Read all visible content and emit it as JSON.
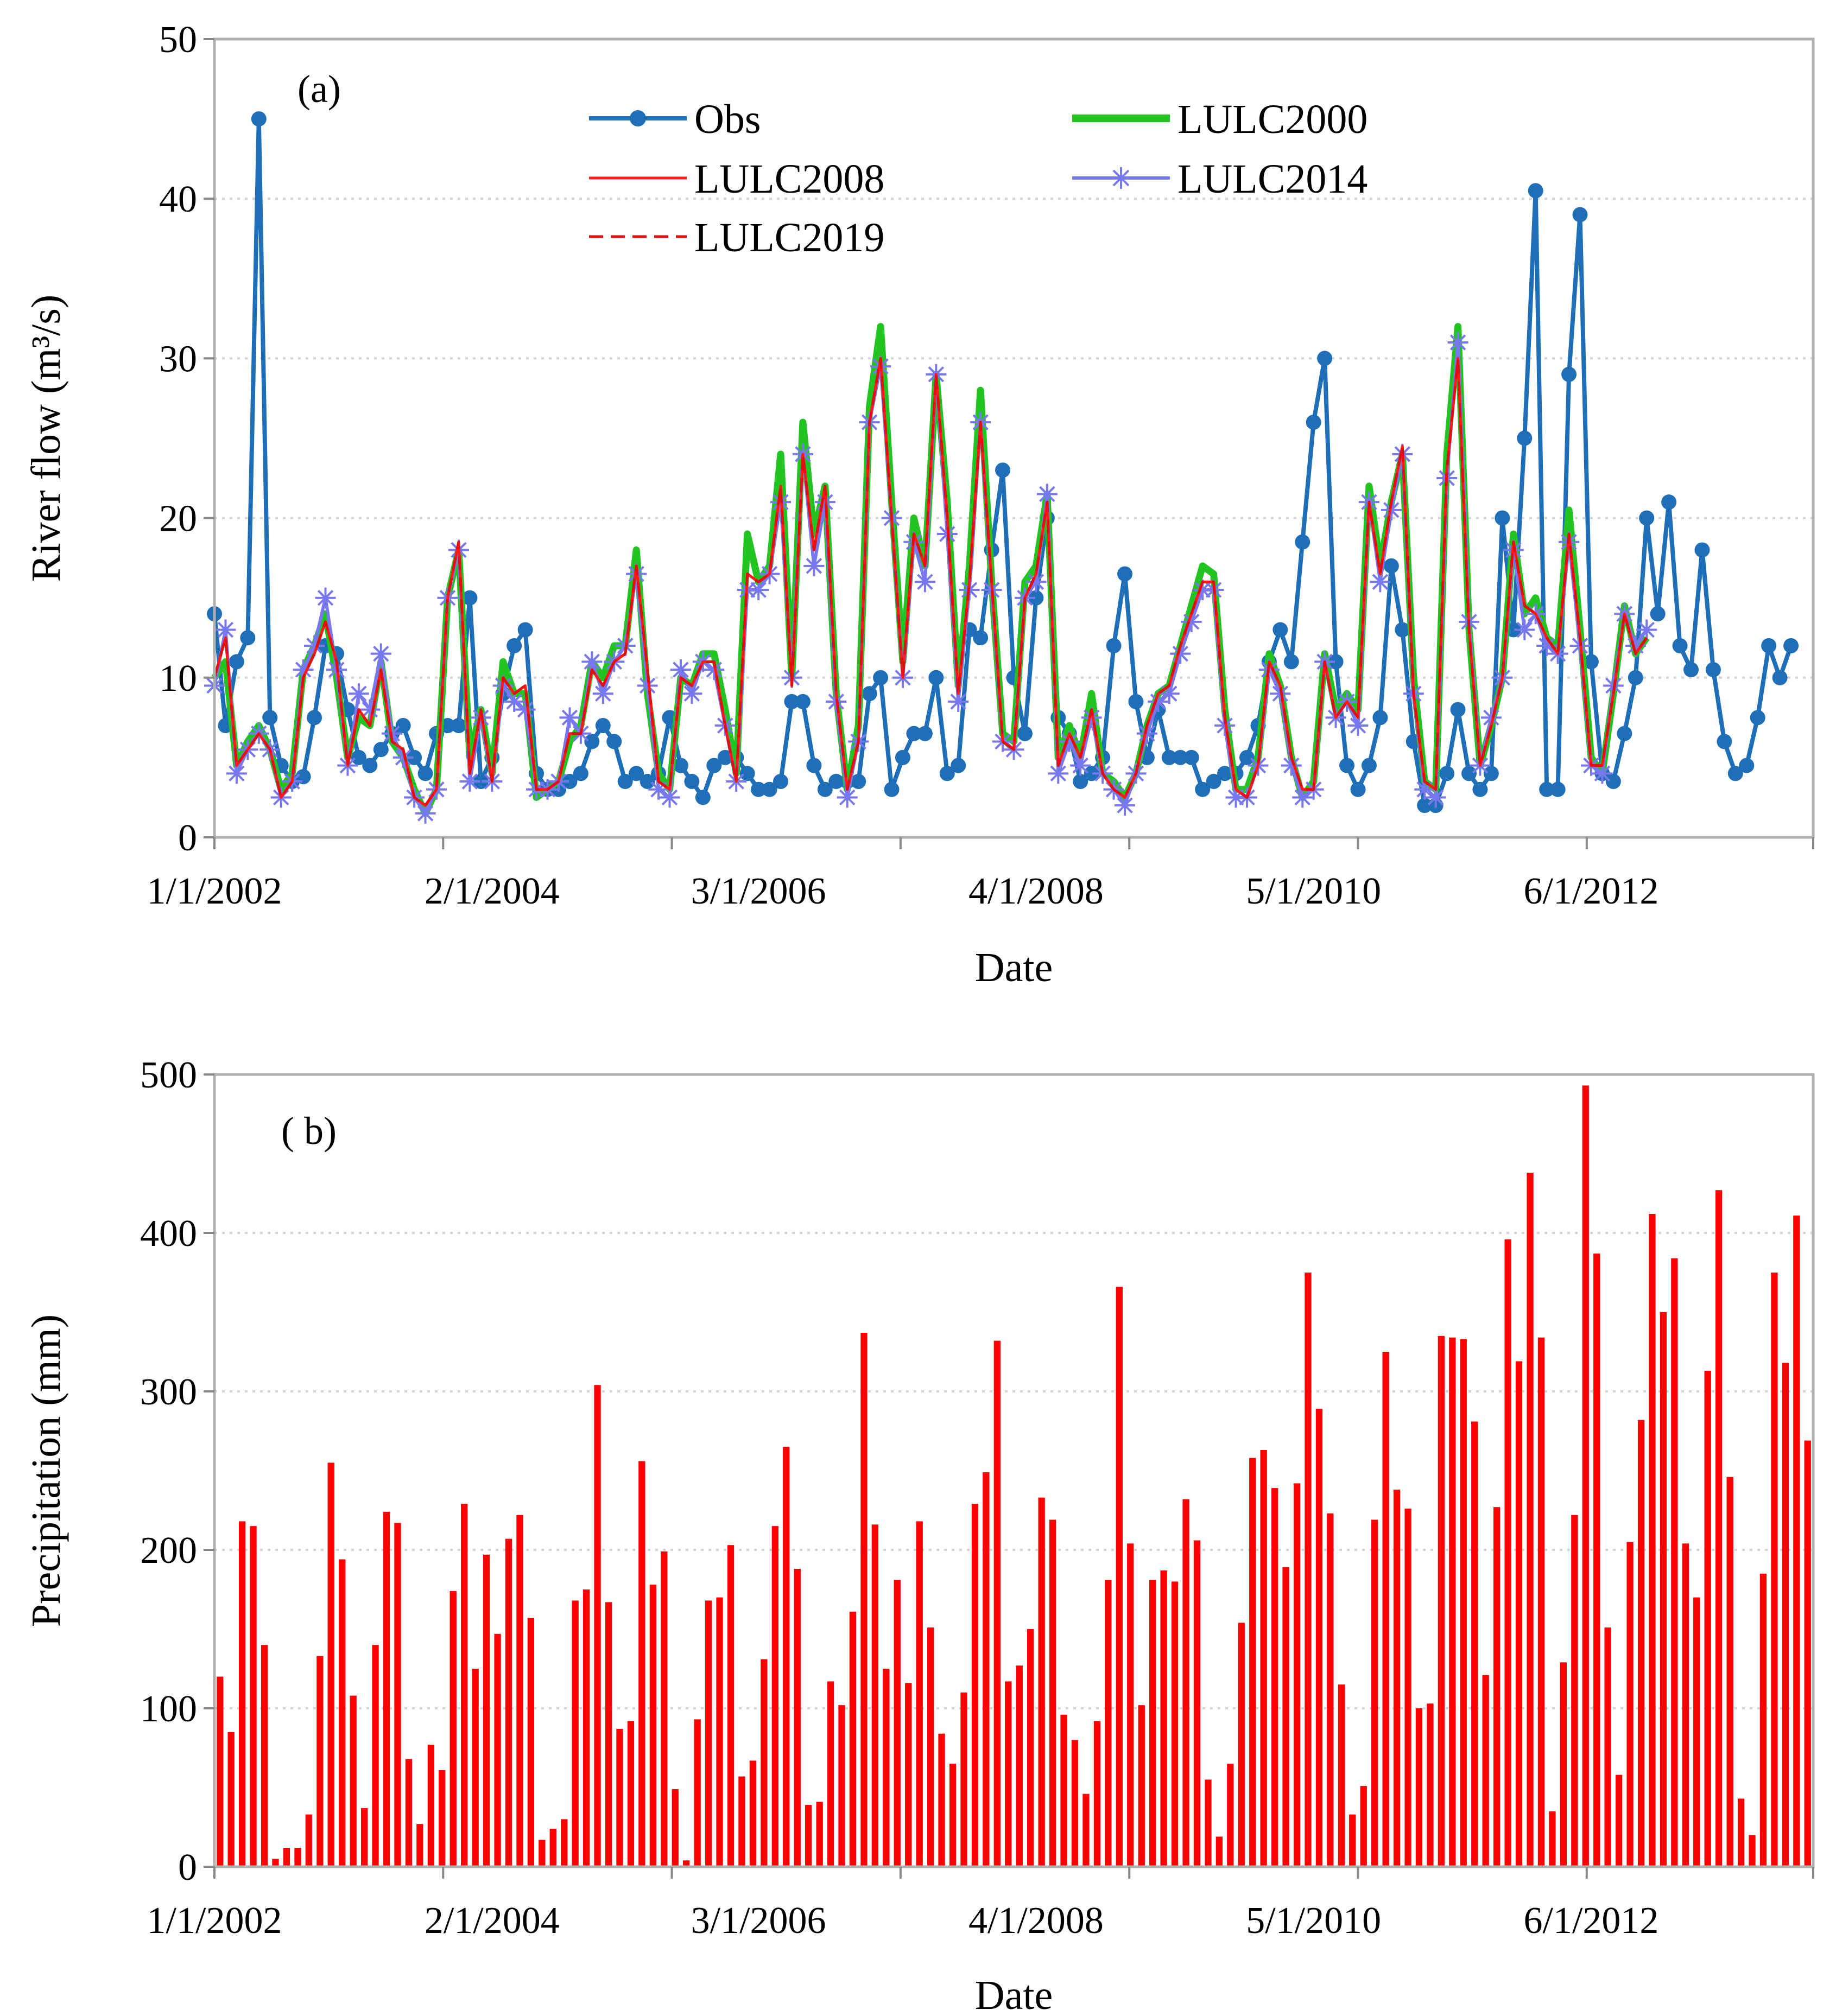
{
  "chart_data": [
    {
      "type": "line",
      "panel_label": "(a)",
      "xlabel": "Date",
      "ylabel": "River flow (m³/s)",
      "ylim": [
        0,
        50
      ],
      "yticks": [
        "0",
        "10",
        "20",
        "30",
        "40",
        "50"
      ],
      "xtick_labels": [
        "1/1/2002",
        "2/1/2004",
        "3/1/2006",
        "4/1/2008",
        "5/1/2010",
        "6/1/2012"
      ],
      "x_unit": "month index from Jan 2002 (0 = Jan 2002)",
      "x_range": [
        0,
        144
      ],
      "grid": "horizontal dotted",
      "legend_position": "top",
      "colors": {
        "obs": "#1f6eb8",
        "lulc2000": "#22c422",
        "lulc2008": "#ff1a1a",
        "lulc2014": "#7878ee",
        "lulc2019": "#e01010"
      },
      "series": [
        {
          "name": "Obs",
          "style": "line-dot",
          "values": [
            14,
            7,
            11,
            12.5,
            45,
            7.5,
            4.5,
            3.5,
            3.8,
            7.5,
            12,
            11.5,
            8,
            5,
            4.5,
            5.5,
            6.5,
            7,
            5,
            4,
            6.5,
            7,
            7,
            15,
            3.5,
            5,
            9,
            12,
            13,
            4,
            3,
            3,
            3.5,
            4,
            6,
            7,
            6,
            3.5,
            4,
            3.5,
            4,
            7.5,
            4.5,
            3.5,
            2.5,
            4.5,
            5,
            5,
            4,
            3,
            3,
            3.5,
            8.5,
            8.5,
            4.5,
            3,
            3.5,
            3.5,
            3.5,
            9,
            10,
            3,
            5,
            6.5,
            6.5,
            10,
            4,
            4.5,
            13,
            12.5,
            18,
            23,
            10,
            6.5,
            15,
            20,
            7.5,
            6.5,
            3.5,
            4,
            5,
            12,
            16.5,
            8.5,
            5,
            8,
            5,
            5,
            5,
            3,
            3.5,
            4,
            4,
            5,
            7,
            11,
            13,
            11,
            18.5,
            26,
            30,
            11,
            4.5,
            3,
            4.5,
            7.5,
            17,
            13,
            6,
            2,
            2,
            4,
            8,
            4,
            3,
            4,
            20,
            13,
            25,
            40.5,
            3,
            3,
            29,
            39,
            11,
            4,
            3.5,
            6.5,
            10,
            20,
            14,
            21,
            12,
            10.5,
            18,
            10.5,
            6,
            4,
            4.5,
            7.5,
            12,
            10,
            12
          ]
        },
        {
          "name": "LULC2000",
          "style": "thick-line",
          "values": [
            10,
            11,
            4.5,
            6,
            7,
            5.5,
            3,
            4,
            10.5,
            12,
            14,
            10,
            5,
            7.5,
            7,
            11,
            6,
            5,
            3,
            1.5,
            3,
            15,
            18,
            5,
            8,
            4,
            11,
            9,
            9,
            2.5,
            3,
            3.5,
            6,
            7,
            11,
            10,
            12,
            12,
            18,
            9,
            4,
            3,
            10,
            9.5,
            11.5,
            11.5,
            8,
            4,
            19,
            16,
            17,
            24,
            10,
            26,
            19,
            22,
            9,
            3,
            7,
            27,
            32,
            21,
            11,
            20,
            17,
            29,
            21,
            9.5,
            17,
            28,
            16,
            6.5,
            6,
            16,
            17,
            21.5,
            5,
            7,
            5,
            9,
            4,
            3.5,
            2.5,
            4,
            7,
            9,
            9.5,
            12,
            14.5,
            17,
            16.5,
            8,
            3,
            3,
            5,
            11.5,
            9.5,
            5,
            2.5,
            3.5,
            11.5,
            8,
            9,
            8,
            22,
            17,
            21,
            24,
            10,
            3.5,
            3,
            24,
            32,
            13,
            4.5,
            7,
            10,
            19,
            14,
            15,
            12.5,
            12,
            20.5,
            13,
            5,
            4,
            9,
            14.5,
            11.5,
            12.5
          ]
        },
        {
          "name": "LULC2008",
          "style": "thin-line",
          "values": [
            10,
            12.5,
            4.5,
            5.5,
            6.5,
            5.5,
            2.5,
            3.5,
            10,
            11.5,
            13.5,
            11,
            4.5,
            8,
            7,
            10.5,
            6,
            5.5,
            2.5,
            2,
            3,
            15,
            18.5,
            4,
            8,
            3.5,
            10,
            9,
            9.5,
            3,
            3,
            3.5,
            6.5,
            6.5,
            10.5,
            9.5,
            11,
            11.5,
            17,
            10.5,
            3.5,
            3,
            10,
            9.5,
            11,
            11,
            7,
            3.5,
            16.5,
            16,
            16.5,
            22,
            9.5,
            24,
            18,
            22,
            9,
            3,
            6,
            26,
            30,
            20,
            10,
            19,
            17,
            29,
            20,
            9,
            16,
            26,
            16,
            6,
            5.5,
            15,
            16.5,
            21,
            4.5,
            6.5,
            5,
            8,
            4,
            3,
            2.5,
            4,
            7,
            9,
            9.5,
            12,
            14,
            16,
            16,
            7.5,
            3,
            2.5,
            4.5,
            11,
            9.5,
            5,
            3,
            3,
            11,
            7.5,
            8.5,
            7.5,
            21,
            16.5,
            21,
            24.5,
            9,
            3.5,
            3,
            23,
            30,
            13,
            4.5,
            7,
            10,
            18.5,
            14.5,
            14,
            12.5,
            11.5,
            19,
            12.5,
            4.5,
            4.5,
            9,
            14,
            11.5,
            12.5
          ]
        },
        {
          "name": "LULC2014",
          "style": "line-star",
          "values": [
            9.5,
            13,
            4,
            5.5,
            6.5,
            5.5,
            2.5,
            3.5,
            10.5,
            12,
            15,
            10.5,
            4.5,
            9,
            8,
            11.5,
            6.5,
            5,
            2.5,
            1.5,
            3,
            15,
            18,
            3.5,
            7.5,
            3.5,
            9.5,
            8.5,
            8,
            3,
            3,
            3.5,
            7.5,
            6.5,
            11,
            9,
            11,
            12,
            16.5,
            9.5,
            3,
            2.5,
            10.5,
            9,
            11,
            10.5,
            7,
            3.5,
            15.5,
            15.5,
            16.5,
            21,
            10,
            24,
            17,
            21,
            8.5,
            2.5,
            6,
            26,
            29.5,
            20,
            10,
            18.5,
            16,
            29,
            19,
            8.5,
            15.5,
            26,
            15.5,
            6,
            5.5,
            15,
            16,
            21.5,
            4,
            6,
            4.5,
            7.5,
            4,
            3,
            2,
            4,
            6.5,
            8.5,
            9,
            11.5,
            13.5,
            15.5,
            15.5,
            7,
            2.5,
            2.5,
            4.5,
            10.5,
            9,
            4.5,
            2.5,
            3,
            11,
            7.5,
            8.5,
            7,
            21,
            16,
            20.5,
            24,
            9,
            3,
            2.5,
            22.5,
            31,
            13.5,
            4.5,
            7.5,
            10,
            18,
            13,
            14,
            12,
            11.5,
            18.5,
            12,
            4.5,
            4,
            9.5,
            14,
            12,
            13
          ]
        },
        {
          "name": "LULC2019",
          "style": "dashed-line",
          "values": [
            10,
            12.5,
            4.5,
            5.5,
            6.5,
            5.5,
            2.5,
            3.5,
            10,
            11.5,
            13.5,
            11,
            4.5,
            8,
            7,
            10.5,
            6,
            5.5,
            2.5,
            2,
            3,
            15,
            18.5,
            4,
            8,
            3.5,
            10,
            9,
            9.5,
            3,
            3,
            3.5,
            6.5,
            6.5,
            10.5,
            9.5,
            11,
            11.5,
            17,
            10.5,
            3.5,
            3,
            10,
            9.5,
            11,
            11,
            7,
            3.5,
            16.5,
            16,
            16.5,
            22,
            9.5,
            24,
            18,
            22,
            9,
            3,
            6,
            26,
            30,
            20,
            10,
            19,
            17,
            29,
            20,
            9,
            16,
            26,
            16,
            6,
            5.5,
            15,
            16.5,
            21,
            4.5,
            6.5,
            5,
            8,
            4,
            3,
            2.5,
            4,
            7,
            9,
            9.5,
            12,
            14,
            16,
            16,
            7.5,
            3,
            2.5,
            4.5,
            11,
            9.5,
            5,
            3,
            3,
            11,
            7.5,
            8.5,
            7.5,
            21,
            16.5,
            21,
            24.5,
            9,
            3.5,
            3,
            23,
            30,
            13,
            4.5,
            7,
            10,
            18.5,
            14.5,
            14,
            12.5,
            11.5,
            19,
            12.5,
            4.5,
            4.5,
            9,
            14,
            11.5,
            12.5
          ]
        }
      ]
    },
    {
      "type": "bar",
      "panel_label": "( b)",
      "xlabel": "Date",
      "ylabel": "Precipitation (mm)",
      "ylim": [
        0,
        500
      ],
      "yticks": [
        "0",
        "100",
        "200",
        "300",
        "400",
        "500"
      ],
      "xtick_labels": [
        "1/1/2002",
        "2/1/2004",
        "3/1/2006",
        "4/1/2008",
        "5/1/2010",
        "6/1/2012"
      ],
      "x_unit": "month index from Jan 2002 (0 = Jan 2002)",
      "x_range": [
        0,
        144
      ],
      "grid": "horizontal dotted",
      "color": "#ff0000",
      "series": [
        {
          "name": "Precipitation",
          "values": [
            120,
            85,
            218,
            215,
            140,
            5,
            12,
            12,
            33,
            133,
            255,
            194,
            108,
            37,
            140,
            224,
            217,
            68,
            27,
            77,
            61,
            174,
            229,
            125,
            197,
            147,
            207,
            222,
            157,
            17,
            24,
            30,
            168,
            175,
            304,
            167,
            87,
            92,
            256,
            178,
            199,
            49,
            4,
            93,
            168,
            170,
            203,
            57,
            67,
            131,
            215,
            265,
            188,
            39,
            41,
            117,
            102,
            161,
            337,
            216,
            125,
            181,
            116,
            218,
            151,
            84,
            65,
            110,
            229,
            249,
            332,
            117,
            127,
            150,
            233,
            219,
            96,
            80,
            46,
            92,
            181,
            366,
            204,
            102,
            181,
            187,
            180,
            232,
            206,
            55,
            19,
            65,
            154,
            258,
            263,
            239,
            189,
            242,
            375,
            289,
            223,
            115,
            33,
            51,
            219,
            325,
            238,
            226,
            100,
            103,
            335,
            334,
            333,
            281,
            121,
            227,
            396,
            319,
            438,
            334,
            35,
            129,
            222,
            493,
            387,
            151,
            58,
            205,
            282,
            412,
            350,
            384,
            204,
            170,
            313,
            427,
            246,
            43,
            20,
            185,
            375,
            318,
            411,
            269
          ]
        }
      ]
    }
  ]
}
